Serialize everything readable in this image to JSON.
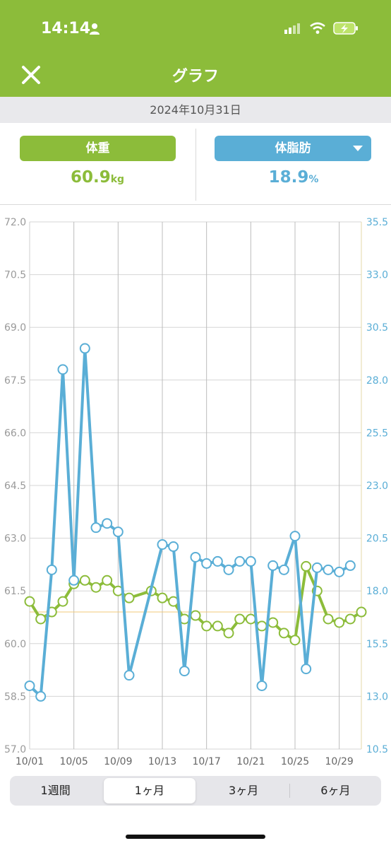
{
  "status": {
    "time": "14:14"
  },
  "nav": {
    "title": "グラフ"
  },
  "date": "2024年10月31日",
  "weight_panel": {
    "label": "体重",
    "value": "60.9",
    "unit": "kg"
  },
  "fat_panel": {
    "label": "体脂肪",
    "value": "18.9",
    "unit": "%"
  },
  "tabs": [
    "1週間",
    "1ヶ月",
    "3ヶ月",
    "6ヶ月"
  ],
  "active_tab": 1,
  "colors": {
    "green": "#8cbc3a",
    "blue": "#5aaed6",
    "header": "#8cbc3a"
  },
  "chart_data": {
    "type": "line",
    "x_tick_labels": [
      "10/01",
      "10/05",
      "10/09",
      "10/13",
      "10/17",
      "10/21",
      "10/25",
      "10/29"
    ],
    "x_tick_days": [
      1,
      5,
      9,
      13,
      17,
      21,
      25,
      29
    ],
    "x_range_days": [
      1,
      31
    ],
    "y_left": {
      "ticks": [
        "72.0",
        "70.5",
        "69.0",
        "67.5",
        "66.0",
        "64.5",
        "63.0",
        "61.5",
        "60.0",
        "58.5",
        "57.0"
      ],
      "range": [
        57.0,
        72.0
      ]
    },
    "y_right": {
      "ticks": [
        "35.5",
        "33.0",
        "30.5",
        "28.0",
        "25.5",
        "23.0",
        "20.5",
        "18.0",
        "15.5",
        "13.0",
        "10.5"
      ],
      "range": [
        10.5,
        35.5
      ]
    },
    "reference_line": {
      "axis": "left",
      "value": 60.9
    },
    "series": [
      {
        "axis": "left",
        "points": [
          [
            1,
            61.2
          ],
          [
            2,
            60.7
          ],
          [
            3,
            60.9
          ],
          [
            4,
            61.2
          ],
          [
            5,
            61.7
          ],
          [
            6,
            61.8
          ],
          [
            7,
            61.6
          ],
          [
            8,
            61.8
          ],
          [
            9,
            61.5
          ],
          [
            10,
            61.3
          ],
          [
            12,
            61.5
          ],
          [
            13,
            61.3
          ],
          [
            14,
            61.2
          ],
          [
            15,
            60.7
          ],
          [
            16,
            60.8
          ],
          [
            17,
            60.5
          ],
          [
            18,
            60.5
          ],
          [
            19,
            60.3
          ],
          [
            20,
            60.7
          ],
          [
            21,
            60.7
          ],
          [
            22,
            60.5
          ],
          [
            23,
            60.6
          ],
          [
            24,
            60.3
          ],
          [
            25,
            60.1
          ],
          [
            26,
            62.2
          ],
          [
            27,
            61.5
          ],
          [
            28,
            60.7
          ],
          [
            29,
            60.6
          ],
          [
            30,
            60.7
          ],
          [
            31,
            60.9
          ]
        ]
      },
      {
        "axis": "right",
        "points": [
          [
            1,
            13.5
          ],
          [
            2,
            13.0
          ],
          [
            3,
            19.0
          ],
          [
            4,
            28.5
          ],
          [
            5,
            18.5
          ],
          [
            6,
            29.5
          ],
          [
            7,
            21.0
          ],
          [
            8,
            21.2
          ],
          [
            9,
            20.8
          ],
          [
            10,
            14.0
          ],
          [
            13,
            20.2
          ],
          [
            14,
            20.1
          ],
          [
            15,
            14.2
          ],
          [
            16,
            19.6
          ],
          [
            17,
            19.3
          ],
          [
            18,
            19.4
          ],
          [
            19,
            19.0
          ],
          [
            20,
            19.4
          ],
          [
            21,
            19.4
          ],
          [
            22,
            13.5
          ],
          [
            23,
            19.2
          ],
          [
            24,
            19.0
          ],
          [
            25,
            20.6
          ],
          [
            26,
            14.3
          ],
          [
            27,
            19.1
          ],
          [
            28,
            19.0
          ],
          [
            29,
            18.9
          ],
          [
            30,
            19.2
          ]
        ]
      }
    ]
  }
}
